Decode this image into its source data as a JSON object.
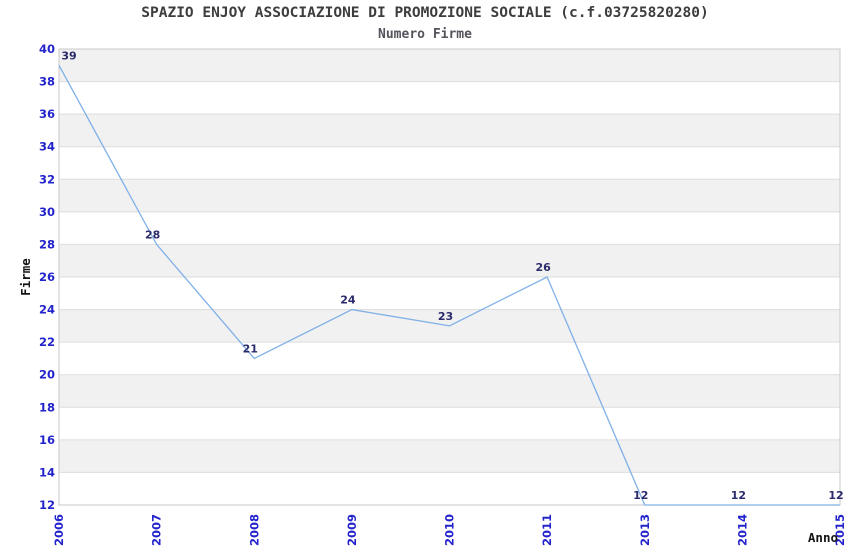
{
  "chart_data": {
    "type": "line",
    "title": "SPAZIO ENJOY ASSOCIAZIONE DI PROMOZIONE SOCIALE (c.f.03725820280)",
    "subtitle": "Numero Firme",
    "categories": [
      "2006",
      "2007",
      "2008",
      "2009",
      "2010",
      "2011",
      "2013",
      "2014",
      "2015"
    ],
    "values": [
      39,
      28,
      21,
      24,
      23,
      26,
      12,
      12,
      12
    ],
    "xlabel": "Anno",
    "ylabel": "Firme",
    "ylim": [
      12,
      40
    ],
    "ytick_step": 2,
    "grid": true,
    "legend_position": "none",
    "band_fill": "alternating-horizontal",
    "colors": {
      "line": "#7fb0e8",
      "tick_label": "#2323cc",
      "point_label": "#2b2b6b",
      "band": "#f1f1f1",
      "gridline": "#dddddd",
      "plot_border": "#c9c9c9",
      "background": "#ffffff"
    }
  }
}
